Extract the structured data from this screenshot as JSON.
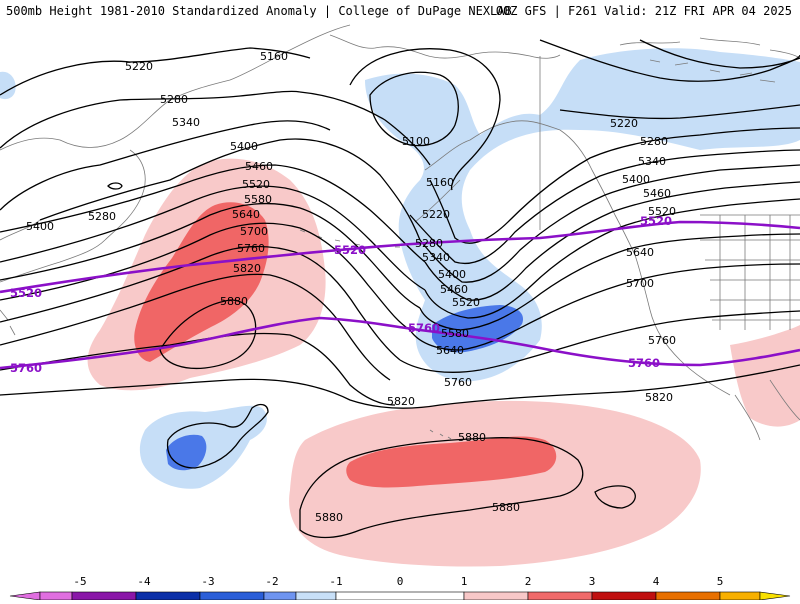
{
  "header": {
    "title_left": "500mb Height 1981-2010 Standardized Anomaly | College of DuPage NEXLAB",
    "title_right": "00Z GFS | F261 Valid: 21Z FRI APR 04 2025"
  },
  "contour_labels": {
    "black": [
      "5160",
      "5220",
      "5280",
      "5340",
      "5400",
      "5460",
      "5520",
      "5580",
      "5640",
      "5700",
      "5760",
      "5820",
      "5880",
      "5100"
    ],
    "purple": [
      "5520",
      "5760"
    ]
  },
  "colorbar": {
    "ticks": [
      "-5",
      "-4",
      "-3",
      "-2",
      "-1",
      "0",
      "1",
      "2",
      "3",
      "4",
      "5"
    ],
    "colors": [
      "#e06ee0",
      "#8a16a8",
      "#0b2fa8",
      "#2a5ed8",
      "#6e94f0",
      "#c8e0f8",
      "#ffffff",
      "#f8c8c8",
      "#f06a6a",
      "#d82020",
      "#a80000",
      "#e06000",
      "#f8a800",
      "#f8e000"
    ]
  },
  "colors": {
    "neg1": "#c6def7",
    "neg2": "#4a78e8",
    "pos1": "#f8c9c9",
    "pos2": "#f06666",
    "contour": "#000000",
    "purple": "#8b10c8",
    "coast": "#7a7a7a"
  }
}
